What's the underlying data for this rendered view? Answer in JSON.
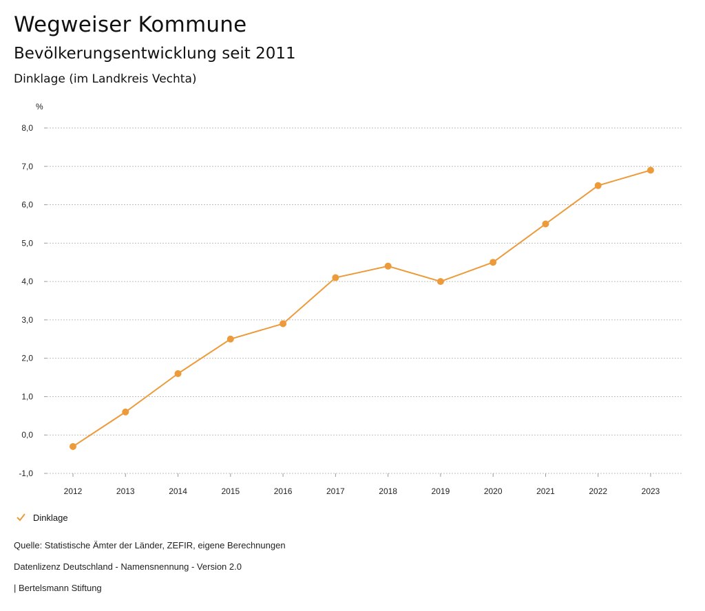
{
  "header": {
    "title": "Wegweiser Kommune",
    "subtitle": "Bevölkerungsentwicklung seit 2011",
    "region": "Dinklage (im Landkreis Vechta)"
  },
  "chart_data": {
    "type": "line",
    "ylabel": "%",
    "ylim": [
      -1.0,
      8.0
    ],
    "yticks": [
      "-1,0",
      "0,0",
      "1,0",
      "2,0",
      "3,0",
      "4,0",
      "5,0",
      "6,0",
      "7,0",
      "8,0"
    ],
    "categories": [
      "2012",
      "2013",
      "2014",
      "2015",
      "2016",
      "2017",
      "2018",
      "2019",
      "2020",
      "2021",
      "2022",
      "2023"
    ],
    "series": [
      {
        "name": "Dinklage",
        "color": "#ec9a3a",
        "values": [
          -0.3,
          0.6,
          1.6,
          2.5,
          2.9,
          4.1,
          4.4,
          4.0,
          4.5,
          5.5,
          6.5,
          6.9
        ]
      }
    ],
    "grid": true,
    "legend": "bottom-left"
  },
  "legend": {
    "label": "Dinklage"
  },
  "footer": {
    "source": "Quelle: Statistische Ämter der Länder, ZEFIR, eigene Berechnungen",
    "license": "Datenlizenz Deutschland - Namensnennung - Version 2.0",
    "publisher": "| Bertelsmann Stiftung"
  }
}
